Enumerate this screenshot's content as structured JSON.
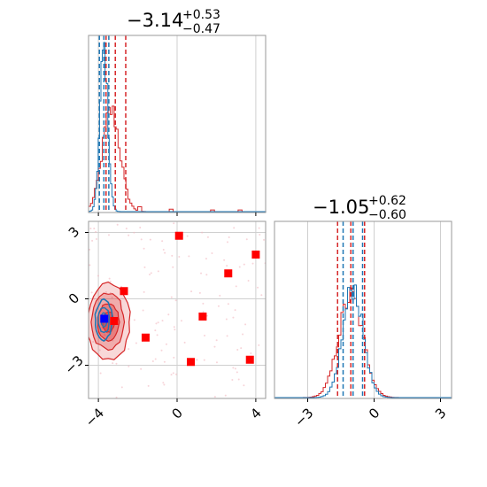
{
  "chart_data": {
    "type": "corner",
    "colors": {
      "blue": "#1f77b4",
      "red": "#d62728",
      "marker_red": "#ff0000",
      "marker_blue": "#0000ff",
      "grid": "#cfcfcf",
      "frame": "#9a9a9a"
    },
    "params": [
      {
        "title_main": "−3.14",
        "title_sup": "+0.53",
        "title_sub": "−0.47",
        "range": [
          -4.5,
          4.5
        ],
        "ticks": [
          -4,
          0,
          4
        ],
        "tick_labels": [
          "−4",
          "0",
          "4"
        ]
      },
      {
        "title_main": "−1.05",
        "title_sup": "+0.62",
        "title_sub": "−0.60",
        "range": [
          -4.5,
          3.5
        ],
        "ticks": [
          -3,
          0,
          3
        ],
        "tick_labels": [
          "−3",
          "0",
          "3"
        ]
      }
    ],
    "hist1": {
      "blue": {
        "mean": -3.72,
        "sd": 0.2,
        "peak": 1.0
      },
      "red": {
        "mean": -3.35,
        "sd": 0.45,
        "peak": 0.62
      },
      "red_tail": [
        [
          -1.9,
          0.03
        ],
        [
          -0.3,
          0.015
        ],
        [
          1.8,
          0.01
        ],
        [
          3.2,
          0.01
        ]
      ],
      "blue_lines": [
        -3.95,
        -3.72,
        -3.47
      ],
      "red_lines": [
        -3.61,
        -3.14,
        -2.61
      ]
    },
    "hist2": {
      "blue": {
        "mean": -0.95,
        "sd": 0.45,
        "peak": 0.68
      },
      "red": {
        "mean": -1.05,
        "sd": 0.55,
        "peak": 0.62
      },
      "blue_lines": [
        -1.4,
        -0.95,
        -0.52
      ],
      "red_lines": [
        -1.65,
        -1.05,
        -0.43
      ]
    },
    "scatter": {
      "red_blob": {
        "center": [
          -3.5,
          -1.05
        ],
        "sd": [
          0.55,
          0.85
        ]
      },
      "blue_blob": {
        "center": [
          -3.72,
          -0.95
        ],
        "sd": [
          0.22,
          0.45
        ]
      },
      "red_markers": [
        [
          0.1,
          2.85
        ],
        [
          4.0,
          2.0
        ],
        [
          2.6,
          1.15
        ],
        [
          -2.7,
          0.35
        ],
        [
          1.3,
          -0.8
        ],
        [
          -3.2,
          -1.0
        ],
        [
          -1.6,
          -1.75
        ],
        [
          3.7,
          -2.75
        ],
        [
          0.7,
          -2.85
        ]
      ],
      "blue_marker": [
        -3.7,
        -0.9
      ]
    }
  }
}
